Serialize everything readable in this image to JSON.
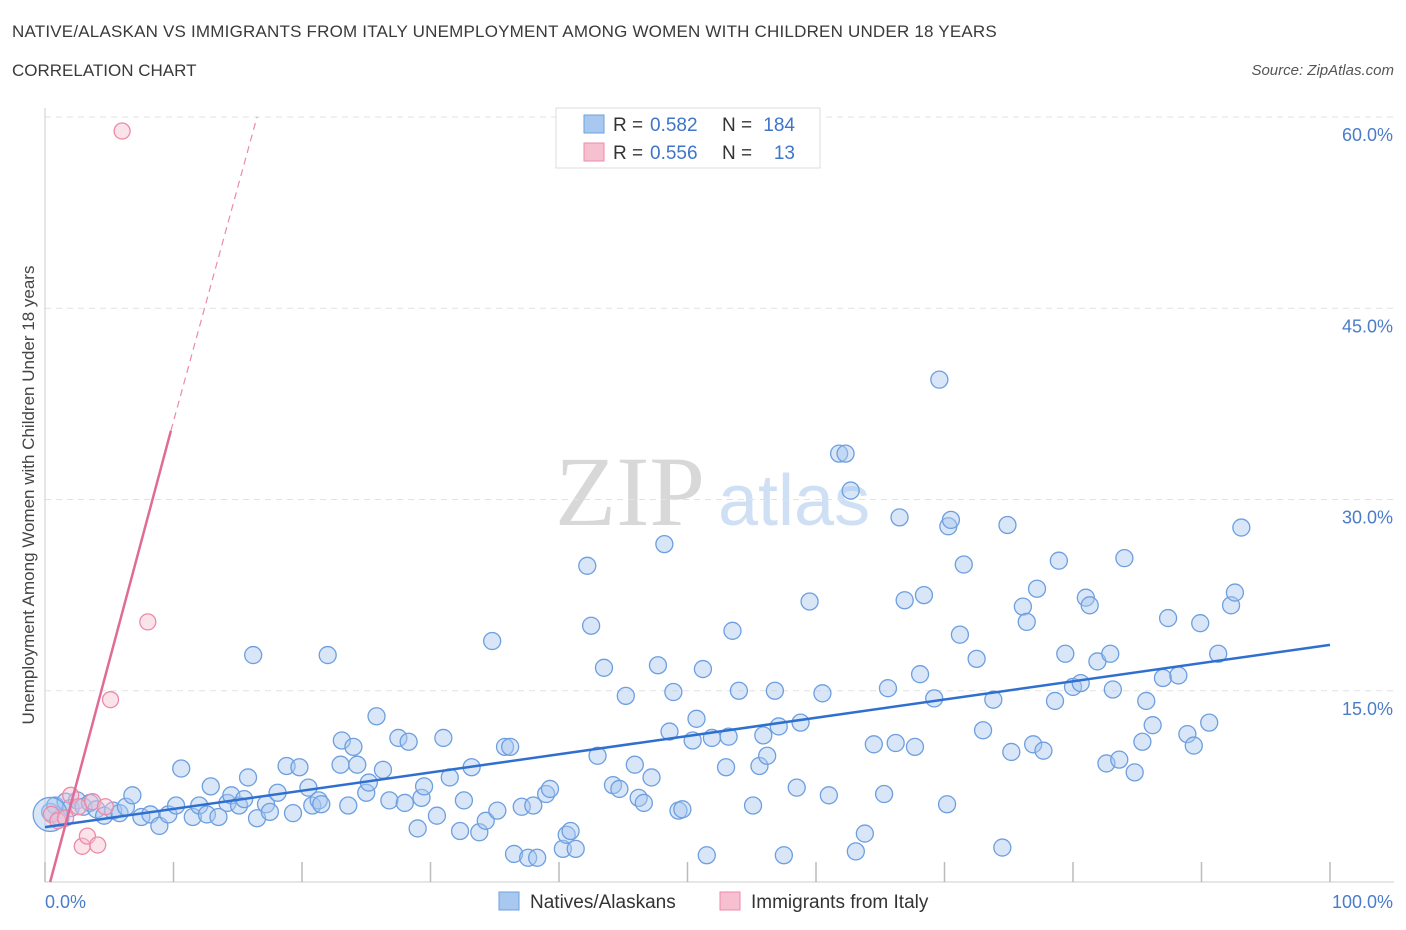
{
  "header": {
    "title": "NATIVE/ALASKAN VS IMMIGRANTS FROM ITALY UNEMPLOYMENT AMONG WOMEN WITH CHILDREN UNDER 18 YEARS",
    "subtitle": "CORRELATION CHART",
    "source": "Source: ZipAtlas.com"
  },
  "watermark": {
    "zip": "ZIP",
    "atlas": "atlas"
  },
  "legend": {
    "rows": [
      {
        "r_label": "R =",
        "r_value": "0.582",
        "n_label": "N =",
        "n_value": "184"
      },
      {
        "r_label": "R =",
        "r_value": "0.556",
        "n_label": "N =",
        "n_value": "13"
      }
    ]
  },
  "bottom_legend": {
    "series1": "Natives/Alaskans",
    "series2": "Immigrants from Italy"
  },
  "colors": {
    "blue_fill": "#a9c8ef",
    "blue_stroke": "#6d9fe0",
    "blue_line": "#2f6fcf",
    "pink_fill": "#f7c0d0",
    "pink_stroke": "#ec8aa8",
    "pink_line": "#e06b96",
    "tick_text": "#4a7cc9",
    "grid": "#e2e2e2"
  },
  "chart_data": {
    "type": "scatter",
    "title": "NATIVE/ALASKAN VS IMMIGRANTS FROM ITALY UNEMPLOYMENT AMONG WOMEN WITH CHILDREN UNDER 18 YEARS",
    "xlabel": "",
    "ylabel": "Unemployment Among Women with Children Under 18 years",
    "xlim": [
      0,
      100
    ],
    "ylim": [
      0,
      60
    ],
    "x_tick_labels": [
      "0.0%",
      "100.0%"
    ],
    "y_ticks": [
      15,
      30,
      45,
      60
    ],
    "y_tick_labels": [
      "15.0%",
      "30.0%",
      "45.0%",
      "60.0%"
    ],
    "grid": true,
    "series": [
      {
        "name": "Natives/Alaskans",
        "r": 0.582,
        "n": 184,
        "trend": {
          "x": [
            0,
            100
          ],
          "y": [
            4.3,
            18.6
          ]
        },
        "points": [
          [
            0.4,
            5.5
          ],
          [
            0.8,
            6.0
          ],
          [
            1.2,
            5.0
          ],
          [
            1.6,
            6.3
          ],
          [
            2.0,
            5.8
          ],
          [
            2.5,
            6.4
          ],
          [
            3.0,
            5.9
          ],
          [
            3.5,
            6.2
          ],
          [
            4.0,
            5.7
          ],
          [
            4.6,
            5.2
          ],
          [
            5.3,
            5.6
          ],
          [
            5.8,
            5.4
          ],
          [
            6.3,
            5.9
          ],
          [
            6.8,
            6.8
          ],
          [
            7.5,
            5.1
          ],
          [
            8.2,
            5.3
          ],
          [
            8.9,
            4.4
          ],
          [
            9.6,
            5.3
          ],
          [
            10.2,
            6.0
          ],
          [
            10.6,
            8.9
          ],
          [
            11.5,
            5.1
          ],
          [
            12.0,
            6.0
          ],
          [
            12.6,
            5.3
          ],
          [
            12.9,
            7.5
          ],
          [
            13.5,
            5.1
          ],
          [
            14.2,
            6.2
          ],
          [
            14.5,
            6.8
          ],
          [
            15.1,
            6.0
          ],
          [
            15.5,
            6.5
          ],
          [
            15.8,
            8.2
          ],
          [
            16.5,
            5.0
          ],
          [
            16.2,
            17.8
          ],
          [
            17.2,
            6.1
          ],
          [
            17.5,
            5.5
          ],
          [
            18.1,
            7.0
          ],
          [
            18.8,
            9.1
          ],
          [
            19.3,
            5.4
          ],
          [
            19.8,
            9.0
          ],
          [
            20.5,
            7.4
          ],
          [
            20.8,
            6.0
          ],
          [
            21.3,
            6.4
          ],
          [
            21.5,
            6.1
          ],
          [
            22.0,
            17.8
          ],
          [
            23.0,
            9.2
          ],
          [
            23.1,
            11.1
          ],
          [
            23.6,
            6.0
          ],
          [
            24.0,
            10.6
          ],
          [
            24.3,
            9.2
          ],
          [
            25.0,
            7.0
          ],
          [
            25.2,
            7.8
          ],
          [
            25.8,
            13.0
          ],
          [
            26.3,
            8.8
          ],
          [
            26.8,
            6.4
          ],
          [
            27.5,
            11.3
          ],
          [
            28.0,
            6.2
          ],
          [
            28.3,
            11.0
          ],
          [
            29.0,
            4.2
          ],
          [
            29.3,
            6.6
          ],
          [
            29.5,
            7.5
          ],
          [
            30.5,
            5.2
          ],
          [
            31.0,
            11.3
          ],
          [
            31.5,
            8.2
          ],
          [
            32.3,
            4.0
          ],
          [
            32.6,
            6.4
          ],
          [
            33.2,
            9.0
          ],
          [
            33.8,
            3.9
          ],
          [
            34.3,
            4.8
          ],
          [
            34.8,
            18.9
          ],
          [
            35.2,
            5.6
          ],
          [
            35.8,
            10.6
          ],
          [
            36.2,
            10.6
          ],
          [
            36.5,
            2.2
          ],
          [
            37.1,
            5.9
          ],
          [
            37.6,
            1.9
          ],
          [
            38.0,
            6.0
          ],
          [
            38.3,
            1.9
          ],
          [
            39.0,
            6.9
          ],
          [
            39.3,
            7.3
          ],
          [
            40.3,
            2.6
          ],
          [
            40.6,
            3.7
          ],
          [
            40.9,
            4.0
          ],
          [
            41.3,
            2.6
          ],
          [
            42.2,
            24.8
          ],
          [
            42.5,
            20.1
          ],
          [
            43.0,
            9.9
          ],
          [
            43.5,
            16.8
          ],
          [
            44.2,
            7.6
          ],
          [
            44.7,
            7.3
          ],
          [
            45.2,
            14.6
          ],
          [
            45.9,
            9.2
          ],
          [
            46.2,
            6.6
          ],
          [
            46.6,
            6.2
          ],
          [
            47.2,
            8.2
          ],
          [
            47.7,
            17.0
          ],
          [
            48.2,
            26.5
          ],
          [
            48.6,
            11.8
          ],
          [
            48.9,
            14.9
          ],
          [
            49.3,
            5.6
          ],
          [
            49.6,
            5.7
          ],
          [
            50.4,
            11.1
          ],
          [
            50.7,
            12.8
          ],
          [
            51.2,
            16.7
          ],
          [
            51.5,
            2.1
          ],
          [
            51.9,
            11.3
          ],
          [
            53.0,
            9.0
          ],
          [
            53.2,
            11.4
          ],
          [
            53.5,
            19.7
          ],
          [
            54.0,
            15.0
          ],
          [
            55.1,
            6.0
          ],
          [
            55.6,
            9.1
          ],
          [
            55.9,
            11.5
          ],
          [
            56.2,
            9.9
          ],
          [
            56.8,
            15.0
          ],
          [
            57.1,
            12.2
          ],
          [
            57.5,
            2.1
          ],
          [
            58.5,
            7.4
          ],
          [
            58.8,
            12.5
          ],
          [
            59.5,
            22.0
          ],
          [
            60.5,
            14.8
          ],
          [
            61.0,
            6.8
          ],
          [
            61.8,
            33.6
          ],
          [
            62.3,
            33.6
          ],
          [
            62.7,
            30.7
          ],
          [
            63.1,
            2.4
          ],
          [
            63.8,
            3.8
          ],
          [
            64.5,
            10.8
          ],
          [
            65.3,
            6.9
          ],
          [
            65.6,
            15.2
          ],
          [
            66.2,
            10.9
          ],
          [
            66.5,
            28.6
          ],
          [
            66.9,
            22.1
          ],
          [
            67.7,
            10.6
          ],
          [
            68.1,
            16.3
          ],
          [
            68.4,
            22.5
          ],
          [
            69.2,
            14.4
          ],
          [
            69.6,
            39.4
          ],
          [
            70.2,
            6.1
          ],
          [
            70.3,
            27.9
          ],
          [
            70.5,
            28.4
          ],
          [
            71.2,
            19.4
          ],
          [
            71.5,
            24.9
          ],
          [
            72.5,
            17.5
          ],
          [
            73.0,
            11.9
          ],
          [
            73.8,
            14.3
          ],
          [
            74.5,
            2.7
          ],
          [
            74.9,
            28.0
          ],
          [
            75.2,
            10.2
          ],
          [
            76.1,
            21.6
          ],
          [
            76.4,
            20.4
          ],
          [
            76.9,
            10.8
          ],
          [
            77.2,
            23.0
          ],
          [
            77.7,
            10.3
          ],
          [
            78.6,
            14.2
          ],
          [
            78.9,
            25.2
          ],
          [
            79.4,
            17.9
          ],
          [
            80.0,
            15.3
          ],
          [
            80.6,
            15.6
          ],
          [
            81.0,
            22.3
          ],
          [
            81.3,
            21.7
          ],
          [
            81.9,
            17.3
          ],
          [
            82.6,
            9.3
          ],
          [
            82.9,
            17.9
          ],
          [
            83.1,
            15.1
          ],
          [
            83.6,
            9.6
          ],
          [
            84.0,
            25.4
          ],
          [
            84.8,
            8.6
          ],
          [
            85.4,
            11.0
          ],
          [
            85.7,
            14.2
          ],
          [
            86.2,
            12.3
          ],
          [
            87.0,
            16.0
          ],
          [
            87.4,
            20.7
          ],
          [
            88.2,
            16.2
          ],
          [
            88.9,
            11.6
          ],
          [
            89.4,
            10.7
          ],
          [
            89.9,
            20.3
          ],
          [
            90.6,
            12.5
          ],
          [
            91.3,
            17.9
          ],
          [
            92.3,
            21.7
          ],
          [
            92.6,
            22.7
          ],
          [
            93.1,
            27.8
          ]
        ]
      },
      {
        "name": "Immigrants from Italy",
        "r": 0.556,
        "n": 13,
        "trend": {
          "x": [
            0.4,
            9.8
          ],
          "y": [
            0.0,
            35.4
          ]
        },
        "trend_dashed": {
          "x": [
            9.8,
            16.5
          ],
          "y": [
            35.4,
            60.0
          ]
        },
        "points": [
          [
            0.5,
            5.3
          ],
          [
            1.0,
            4.8
          ],
          [
            1.6,
            5.0
          ],
          [
            2.0,
            6.8
          ],
          [
            2.6,
            5.9
          ],
          [
            2.9,
            2.8
          ],
          [
            3.3,
            3.6
          ],
          [
            3.7,
            6.3
          ],
          [
            4.1,
            2.9
          ],
          [
            4.7,
            5.9
          ],
          [
            5.1,
            14.3
          ],
          [
            6.0,
            58.9
          ],
          [
            8.0,
            20.4
          ]
        ]
      }
    ]
  }
}
